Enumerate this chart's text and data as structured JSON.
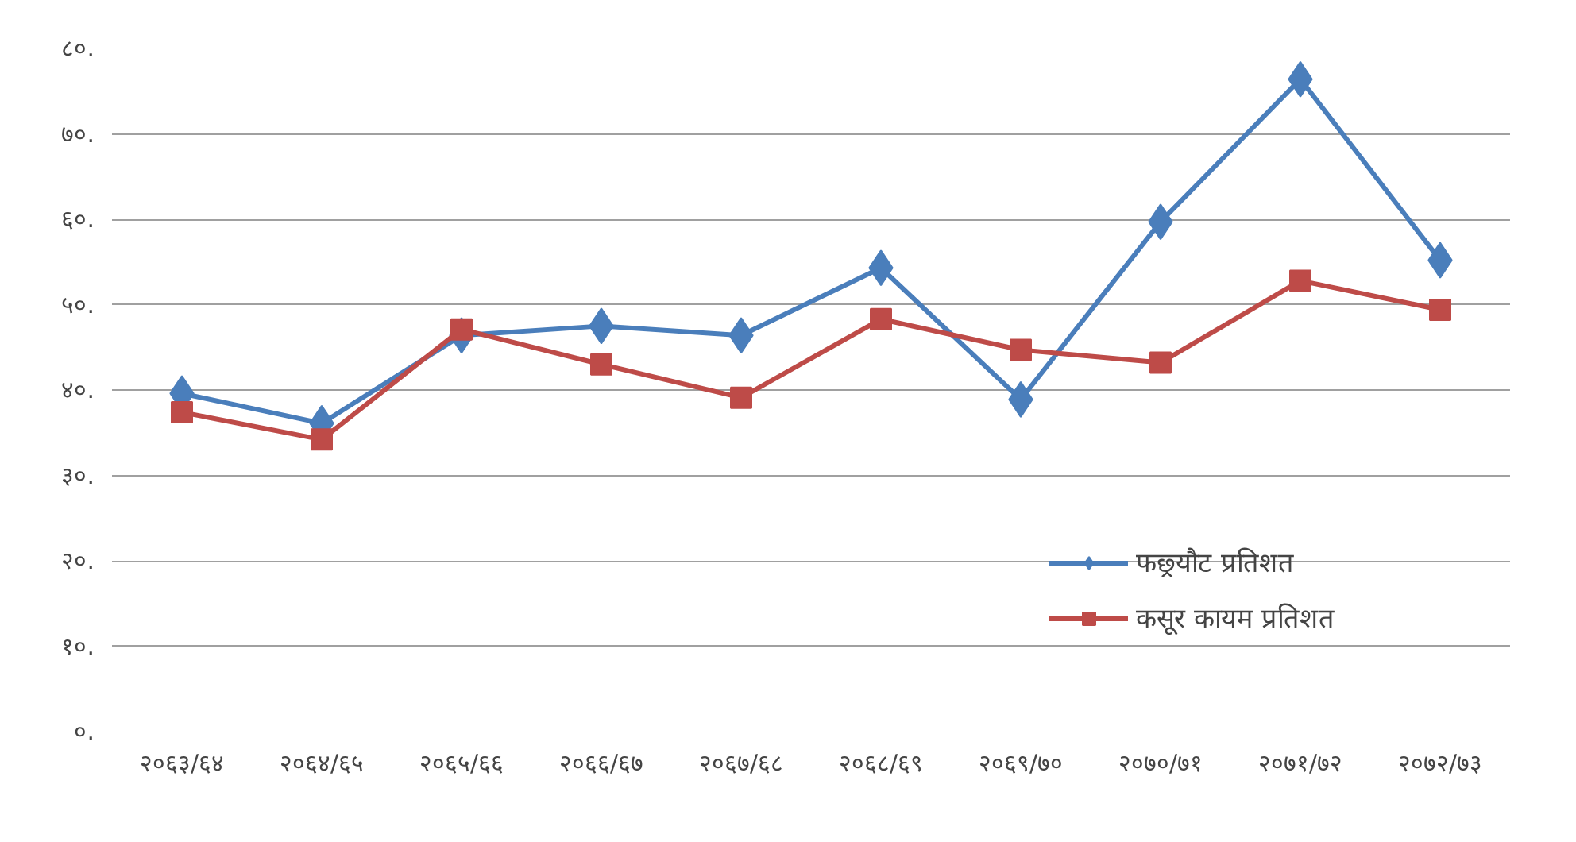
{
  "chart_data": {
    "type": "line",
    "categories": [
      "२०६३/६४",
      "२०६४/६५",
      "२०६५/६६",
      "२०६६/६७",
      "२०६७/६८",
      "२०६८/६९",
      "२०६९/७०",
      "२०७०/७१",
      "२०७१/७२",
      "२०७२/७३"
    ],
    "series": [
      {
        "name": "फछ्र्यौट प्रतिशत",
        "color": "#4a7ebb",
        "marker": "diamond",
        "values": [
          39.6,
          36.1,
          46.4,
          47.5,
          46.4,
          54.3,
          38.9,
          59.7,
          76.4,
          55.2
        ]
      },
      {
        "name": "कसूर कायम प्रतिशत",
        "color": "#be4b48",
        "marker": "square",
        "values": [
          37.4,
          34.2,
          47.1,
          43.0,
          39.1,
          48.3,
          44.7,
          43.2,
          52.8,
          49.4
        ]
      }
    ],
    "ylim": [
      0,
      80
    ],
    "yticks": [
      {
        "value": 0,
        "label": "०."
      },
      {
        "value": 10,
        "label": "१०."
      },
      {
        "value": 20,
        "label": "२०."
      },
      {
        "value": 30,
        "label": "३०."
      },
      {
        "value": 40,
        "label": "४०."
      },
      {
        "value": 50,
        "label": "५०."
      },
      {
        "value": 60,
        "label": "६०."
      },
      {
        "value": 70,
        "label": "७०."
      },
      {
        "value": 80,
        "label": "८०."
      }
    ],
    "grid": "y",
    "legend": "right",
    "line_style": "solid"
  }
}
